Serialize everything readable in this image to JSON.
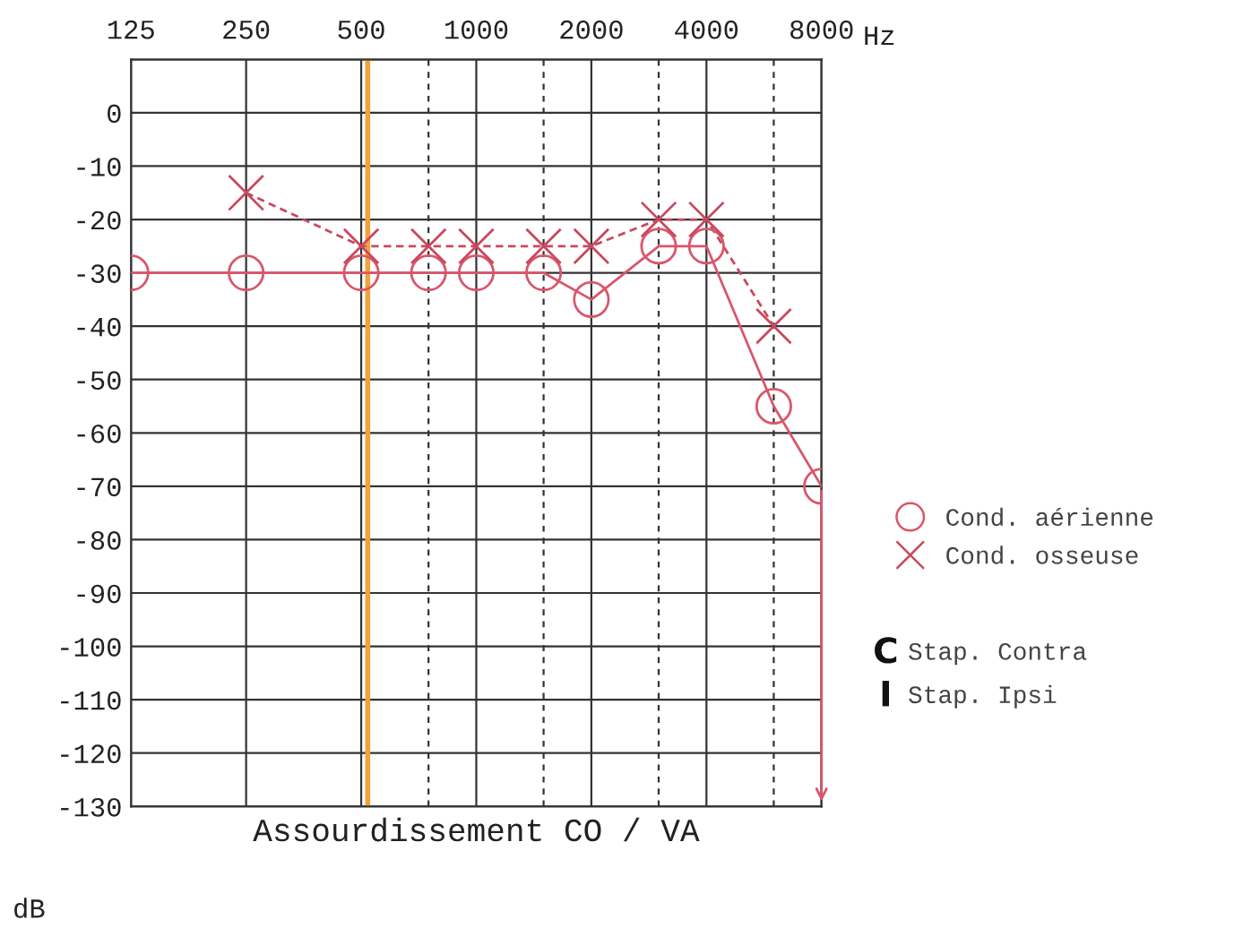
{
  "chart_data": {
    "type": "line",
    "xlabel": "Hz",
    "ylabel": "dB",
    "annotations": [
      "Assourdissement CO / VA",
      "C",
      "Stap. Contra",
      "I",
      "Stap. Ipsi"
    ],
    "log": "x",
    "xlim": [
      125,
      8000
    ],
    "xticks": [
      125,
      250,
      500,
      {
        "value": 750,
        "label": null
      },
      1000,
      {
        "value": 1500,
        "label": null
      },
      2000,
      {
        "value": 3000,
        "label": null
      },
      4000,
      {
        "value": 6000,
        "label": null
      },
      8000
    ],
    "ylim": [
      -130,
      10
    ],
    "yticks": [
      {
        "value": 10,
        "label": null
      },
      0,
      -10,
      -20,
      -30,
      -40,
      -50,
      -60,
      -70,
      -80,
      -90,
      -100,
      -110,
      -120,
      -130
    ],
    "grid": true,
    "legend": "right",
    "series": [
      {
        "name": "Cond. aérienne",
        "color": "#d9566b",
        "marker": "circle",
        "line_style": "solid",
        "x": [
          125,
          250,
          500,
          750,
          1000,
          1500,
          2000,
          3000,
          4000,
          6000,
          8000
        ],
        "values": [
          -30,
          -30,
          -30,
          -30,
          -30,
          -30,
          -35,
          -25,
          -25,
          -55,
          -70
        ]
      },
      {
        "name": "Cond. osseuse",
        "color": "#c9485e",
        "marker": "cross",
        "line_style": "dashed",
        "x": [
          250,
          500,
          750,
          1000,
          1500,
          2000,
          3000,
          4000,
          6000
        ],
        "values": [
          -15,
          -25,
          -25,
          -25,
          -25,
          -25,
          -20,
          -20,
          -40
        ]
      }
    ],
    "ref_lines": [
      {
        "axis": "x",
        "value": 520,
        "label": null,
        "color": "#f2a23a",
        "line_style": "solid"
      }
    ]
  }
}
